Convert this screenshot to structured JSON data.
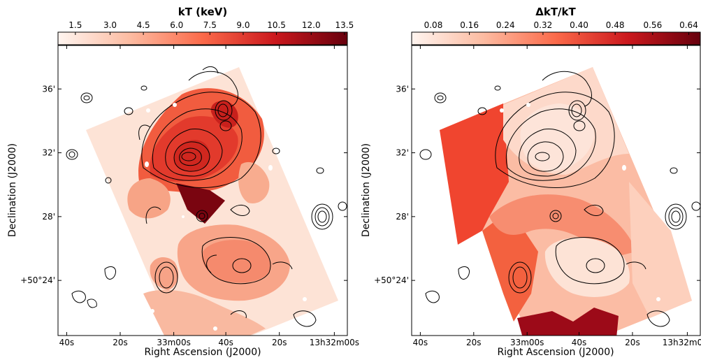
{
  "panels": [
    {
      "id": "temperature",
      "colorbar": {
        "title": "kT (keV)",
        "ticks": [
          "1.5",
          "3.0",
          "4.5",
          "6.0",
          "7.5",
          "9.0",
          "10.5",
          "12.0",
          "13.5"
        ],
        "colors": [
          "#fff5f0",
          "#fcbba1",
          "#fb6a4a",
          "#cb181d",
          "#67000d"
        ]
      },
      "xlabel": "Right Ascension (J2000)",
      "ylabel": "Declination (J2000)",
      "xticks": [
        "40s",
        "20s",
        "33m00s",
        "40s",
        "20s",
        "13h32m00s"
      ],
      "yticks": [
        "36'",
        "32'",
        "28'",
        "+50°24'"
      ]
    },
    {
      "id": "fractional-error",
      "colorbar": {
        "title": "ΔkT/kT",
        "ticks": [
          "0.08",
          "0.16",
          "0.24",
          "0.32",
          "0.40",
          "0.48",
          "0.56",
          "0.64"
        ],
        "colors": [
          "#fff5f0",
          "#fcbba1",
          "#fb6a4a",
          "#cb181d",
          "#67000d"
        ]
      },
      "xlabel": "Right Ascension (J2000)",
      "ylabel": "Declination (J2000)",
      "xticks": [
        "40s",
        "20s",
        "33m00s",
        "40s",
        "20s",
        "13h32m00s"
      ],
      "yticks": [
        "36'",
        "32'",
        "28'",
        "+50°24'"
      ]
    }
  ],
  "chart_data": [
    {
      "type": "heatmap",
      "colorbar_title": "kT (keV)",
      "colorbar_ticks": [
        1.5,
        3.0,
        4.5,
        6.0,
        7.5,
        9.0,
        10.5,
        12.0,
        13.5
      ],
      "xlabel": "Right Ascension (J2000)",
      "ylabel": "Declination (J2000)",
      "xtick_labels": [
        "40s",
        "20s",
        "33m00s",
        "40s",
        "20s",
        "13h32m00s"
      ],
      "ytick_labels": [
        "36'",
        "32'",
        "28'",
        "+50°24'"
      ],
      "overlay": "contours"
    },
    {
      "type": "heatmap",
      "colorbar_title": "ΔkT/kT",
      "colorbar_ticks": [
        0.08,
        0.16,
        0.24,
        0.32,
        0.4,
        0.48,
        0.56,
        0.64
      ],
      "xlabel": "Right Ascension (J2000)",
      "ylabel": "Declination (J2000)",
      "xtick_labels": [
        "40s",
        "20s",
        "33m00s",
        "40s",
        "20s",
        "13h32m00s"
      ],
      "ytick_labels": [
        "36'",
        "32'",
        "28'",
        "+50°24'"
      ],
      "overlay": "contours"
    }
  ]
}
